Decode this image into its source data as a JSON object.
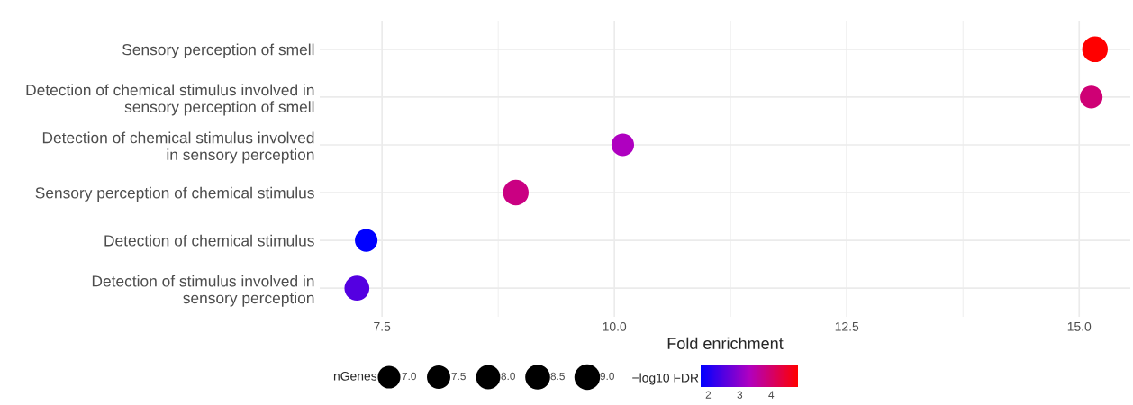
{
  "chart_data": {
    "type": "bubble",
    "xlabel": "Fold enrichment",
    "legend_title": "nGenes",
    "clabel": "−log10 FDR",
    "categories": [
      "Sensory perception of smell",
      "Detection of chemical stimulus involved in\nsensory perception of smell",
      "Detection of chemical stimulus involved\nin sensory perception",
      "Sensory perception of chemical stimulus",
      "Detection of chemical stimulus",
      "Detection of stimulus involved in\nsensory perception"
    ],
    "values": [
      15.17,
      15.13,
      10.09,
      8.94,
      7.33,
      7.23
    ],
    "sizes": [
      9,
      7,
      7,
      9,
      7,
      8.5
    ],
    "size_legend": [
      {
        "value": 7,
        "label": "7.0"
      },
      {
        "value": 7.5,
        "label": "7.5"
      },
      {
        "value": 8,
        "label": "8.0"
      },
      {
        "value": 8.5,
        "label": "8.5"
      },
      {
        "value": 9,
        "label": "9.0"
      }
    ],
    "cvalues": [
      4.85,
      3.9,
      3.3,
      3.8,
      1.76,
      2.5
    ],
    "clim": [
      1.76,
      4.85
    ],
    "cticks": [
      2,
      3,
      4
    ],
    "orientation": "horizontal",
    "xlim": [
      6.83,
      15.55
    ],
    "xticks": [
      {
        "value": 7.5,
        "label": "7.5"
      },
      {
        "value": 10.0,
        "label": "10.0"
      },
      {
        "value": 12.5,
        "label": "12.5"
      },
      {
        "value": 15.0,
        "label": "15.0"
      }
    ],
    "grid": true
  }
}
